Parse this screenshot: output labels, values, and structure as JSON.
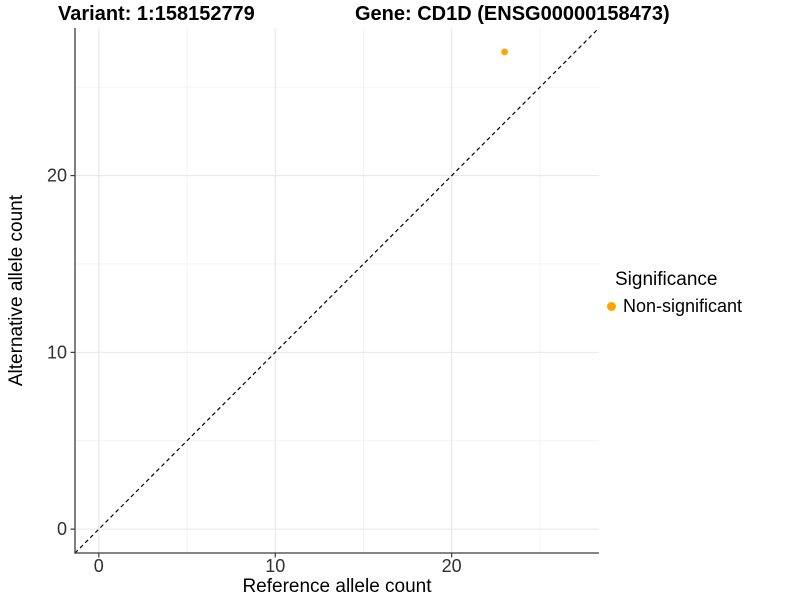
{
  "figure": {
    "background": "#FFFFFF"
  },
  "chart_data": {
    "type": "scatter",
    "titles": {
      "left": "Variant: 1:158152779",
      "right": "Gene: CD1D (ENSG00000158473)"
    },
    "xlabel": "Reference allele count",
    "ylabel": "Alternative allele count",
    "xlim": [
      -1.35,
      28.35
    ],
    "ylim": [
      -1.35,
      28.35
    ],
    "x_major_ticks": [
      0,
      10,
      20
    ],
    "y_major_ticks": [
      0,
      10,
      20
    ],
    "x_minor_ticks": [
      5,
      15,
      25
    ],
    "y_minor_ticks": [
      5,
      15,
      25
    ],
    "grid": true,
    "identity_line": {
      "shown": true,
      "style": "dashed",
      "equation": "y = x"
    },
    "series": [
      {
        "name": "Non-significant",
        "color": "#FFA500",
        "points": [
          {
            "x": 23,
            "y": 27
          }
        ]
      }
    ],
    "legend": {
      "title": "Significance",
      "position": "right",
      "items": [
        {
          "label": "Non-significant",
          "color": "#FFA500"
        }
      ]
    },
    "colors": {
      "grid_major": "#E8E8E8",
      "grid_minor": "#F3F3F3",
      "axis": "#3C3C3C",
      "tick_text": "#303030",
      "identity_line": "#000000",
      "point": "#FFA500"
    }
  }
}
